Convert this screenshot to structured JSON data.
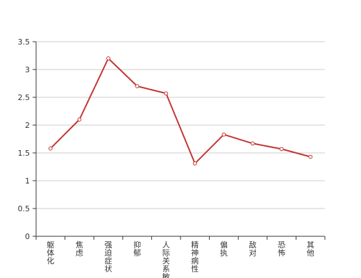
{
  "chart_data": {
    "type": "line",
    "categories": [
      "躯体化",
      "焦虑",
      "强迫症状",
      "抑郁",
      "人际关系敏感",
      "精神病性",
      "偏执",
      "敌对",
      "恐怖",
      "其他"
    ],
    "series": [
      {
        "values": [
          1.58,
          2.1,
          3.2,
          2.7,
          2.57,
          1.31,
          1.83,
          1.67,
          1.57,
          1.43
        ]
      }
    ],
    "yticks": [
      "0",
      "0.5",
      "1",
      "1.5",
      "2",
      "2.5",
      "3",
      "3.5"
    ],
    "ylim": [
      0,
      3.5
    ],
    "grid": true,
    "line_color": "#c23531",
    "title": "",
    "xlabel": "",
    "ylabel": ""
  }
}
